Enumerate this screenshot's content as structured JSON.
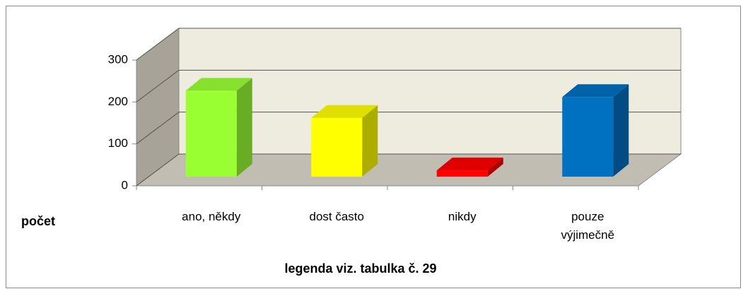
{
  "chart_data": {
    "type": "bar3d",
    "categories": [
      "ano, někdy",
      "dost často",
      "nikdy",
      "pouze výjimečně"
    ],
    "values": [
      205,
      140,
      15,
      190
    ],
    "colors": [
      "#99ff33",
      "#ffff00",
      "#ff0000",
      "#0070c0"
    ],
    "ylim": [
      0,
      300
    ],
    "yticks": [
      0,
      100,
      200,
      300
    ],
    "grid": true,
    "ylabel": "počet",
    "xlabel": "legenda viz. tabulka č. 29"
  }
}
